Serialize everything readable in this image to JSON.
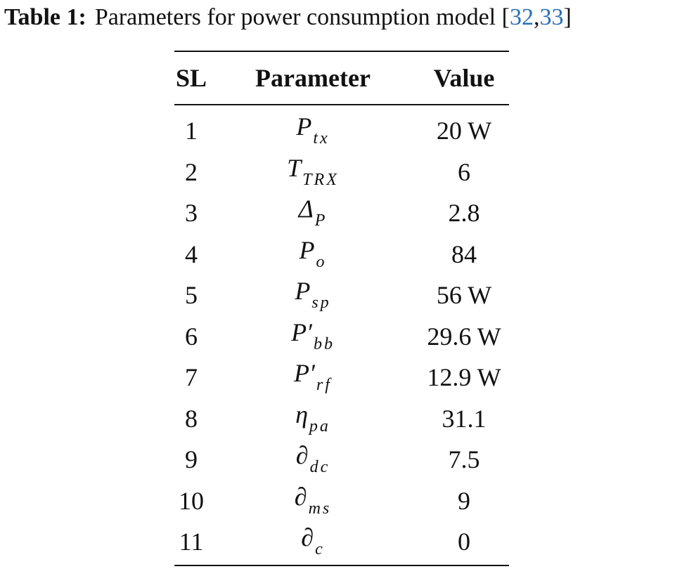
{
  "caption": {
    "label": "Table 1:",
    "text": "Parameters for power consumption model [",
    "refs": [
      "32",
      "33"
    ],
    "ref_separator": ",",
    "close": "]"
  },
  "table": {
    "header": [
      "SL",
      "Parameter",
      "Value"
    ],
    "rows": [
      {
        "sl": "1",
        "param": {
          "base": "P",
          "sub": "tx"
        },
        "value": "20 W"
      },
      {
        "sl": "2",
        "param": {
          "base": "T",
          "sub": "TRX"
        },
        "value": "6"
      },
      {
        "sl": "3",
        "param": {
          "base": "Δ",
          "sub": "P"
        },
        "value": "2.8"
      },
      {
        "sl": "4",
        "param": {
          "base": "P",
          "sub": "o"
        },
        "value": "84"
      },
      {
        "sl": "5",
        "param": {
          "base": "P",
          "sub": "sp"
        },
        "value": "56 W"
      },
      {
        "sl": "6",
        "param": {
          "base": "P′",
          "sub": "bb"
        },
        "value": "29.6 W"
      },
      {
        "sl": "7",
        "param": {
          "base": "P′",
          "sub": "rf"
        },
        "value": "12.9 W"
      },
      {
        "sl": "8",
        "param": {
          "base": "η",
          "sub": "pa"
        },
        "value": "31.1"
      },
      {
        "sl": "9",
        "param": {
          "base": "∂",
          "sub": "dc"
        },
        "value": "7.5"
      },
      {
        "sl": "10",
        "param": {
          "base": "∂",
          "sub": "ms"
        },
        "value": "9"
      },
      {
        "sl": "11",
        "param": {
          "base": "∂",
          "sub": "c"
        },
        "value": "0"
      }
    ]
  }
}
